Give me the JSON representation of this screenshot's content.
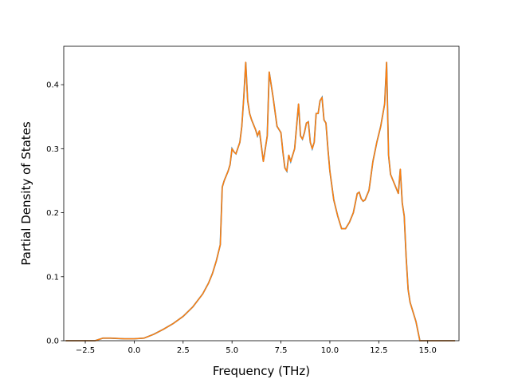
{
  "chart_data": {
    "type": "line",
    "title": "",
    "xlabel": "Frequency (THz)",
    "ylabel": "Partial Density of States",
    "xlim": [
      -3.6,
      16.6
    ],
    "ylim": [
      0,
      0.46
    ],
    "x_ticks": [
      -2.5,
      0.0,
      2.5,
      5.0,
      7.5,
      10.0,
      12.5,
      15.0
    ],
    "x_tick_labels": [
      "−2.5",
      "0.0",
      "2.5",
      "5.0",
      "7.5",
      "10.0",
      "12.5",
      "15.0"
    ],
    "y_ticks": [
      0.0,
      0.1,
      0.2,
      0.3,
      0.4
    ],
    "y_tick_labels": [
      "0.0",
      "0.1",
      "0.2",
      "0.3",
      "0.4"
    ],
    "grid": false,
    "legend": "none",
    "series": [
      {
        "color": "#ff7f0e",
        "overlay_color": "#3a88bd",
        "x": [
          -3.5,
          -2.0,
          -1.6,
          -1.2,
          -0.5,
          0.0,
          0.5,
          1.0,
          1.5,
          2.0,
          2.5,
          3.0,
          3.5,
          3.8,
          4.0,
          4.2,
          4.4,
          4.5,
          4.6,
          4.8,
          4.9,
          5.0,
          5.1,
          5.2,
          5.4,
          5.5,
          5.6,
          5.7,
          5.8,
          5.9,
          6.0,
          6.2,
          6.3,
          6.4,
          6.6,
          6.8,
          6.9,
          7.1,
          7.3,
          7.5,
          7.6,
          7.7,
          7.8,
          7.9,
          8.0,
          8.2,
          8.3,
          8.4,
          8.5,
          8.6,
          8.7,
          8.8,
          8.9,
          9.0,
          9.1,
          9.2,
          9.3,
          9.4,
          9.5,
          9.6,
          9.7,
          9.8,
          9.9,
          10.0,
          10.2,
          10.4,
          10.6,
          10.8,
          11.0,
          11.2,
          11.4,
          11.5,
          11.6,
          11.7,
          11.8,
          12.0,
          12.2,
          12.4,
          12.6,
          12.8,
          12.9,
          13.0,
          13.1,
          13.3,
          13.5,
          13.6,
          13.7,
          13.8,
          13.9,
          14.0,
          14.1,
          14.2,
          14.4,
          14.6,
          14.7,
          14.8,
          16.4
        ],
        "y": [
          0.0,
          0.0,
          0.004,
          0.004,
          0.003,
          0.003,
          0.004,
          0.01,
          0.018,
          0.027,
          0.038,
          0.053,
          0.073,
          0.09,
          0.105,
          0.125,
          0.15,
          0.24,
          0.25,
          0.265,
          0.275,
          0.3,
          0.295,
          0.292,
          0.31,
          0.335,
          0.38,
          0.435,
          0.375,
          0.355,
          0.345,
          0.33,
          0.32,
          0.328,
          0.28,
          0.32,
          0.42,
          0.38,
          0.335,
          0.325,
          0.295,
          0.27,
          0.265,
          0.29,
          0.28,
          0.3,
          0.335,
          0.37,
          0.32,
          0.315,
          0.325,
          0.34,
          0.342,
          0.31,
          0.3,
          0.31,
          0.355,
          0.355,
          0.375,
          0.38,
          0.345,
          0.34,
          0.3,
          0.265,
          0.22,
          0.195,
          0.175,
          0.175,
          0.185,
          0.2,
          0.23,
          0.232,
          0.222,
          0.218,
          0.22,
          0.235,
          0.28,
          0.31,
          0.335,
          0.37,
          0.435,
          0.29,
          0.26,
          0.245,
          0.23,
          0.268,
          0.215,
          0.195,
          0.13,
          0.08,
          0.06,
          0.05,
          0.03,
          0.0,
          0.0,
          0.0,
          0.0
        ]
      }
    ]
  }
}
